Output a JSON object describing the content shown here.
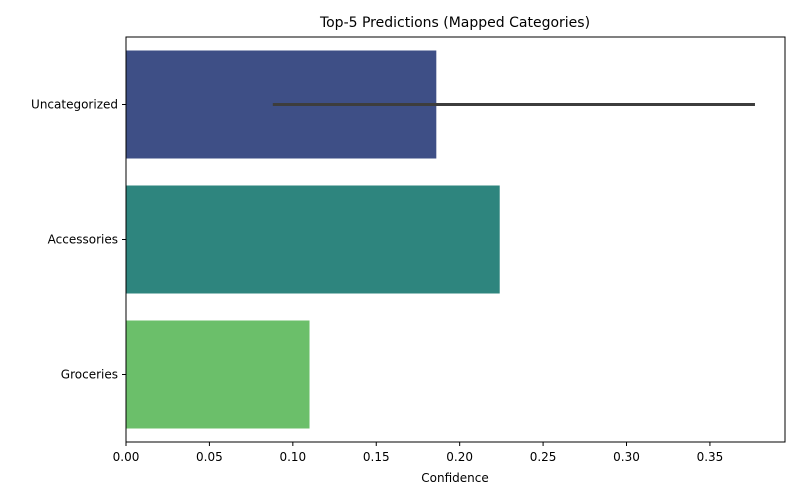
{
  "chart_data": {
    "type": "bar",
    "orientation": "horizontal",
    "title": "Top-5 Predictions (Mapped Categories)",
    "xlabel": "Confidence",
    "ylabel": "",
    "xlim": [
      0,
      0.395
    ],
    "x_ticks": [
      "0.00",
      "0.05",
      "0.10",
      "0.15",
      "0.20",
      "0.25",
      "0.30",
      "0.35"
    ],
    "categories": [
      "Uncategorized",
      "Accessories",
      "Groceries"
    ],
    "values": [
      0.186,
      0.224,
      0.11
    ],
    "error_bars": [
      [
        0.088,
        0.377
      ],
      null,
      null
    ],
    "colors": [
      "#3e4f86",
      "#2e857e",
      "#6bbf6a"
    ],
    "error_bar_color": "#3d3d3d",
    "grid": false,
    "legend": "none"
  }
}
